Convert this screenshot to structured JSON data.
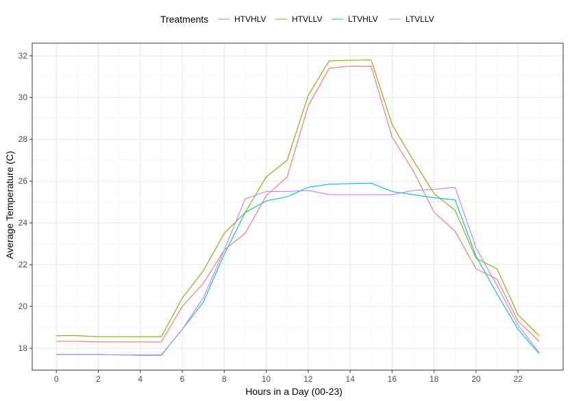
{
  "chart_data": {
    "type": "line",
    "xlabel": "Hours in a Day (00-23)",
    "ylabel": "Average Temperature (C)",
    "xlim": [
      -1.15,
      24.15
    ],
    "ylim": [
      16.95,
      32.6
    ],
    "x_ticks": [
      0,
      2,
      4,
      6,
      8,
      10,
      12,
      14,
      16,
      18,
      20,
      22
    ],
    "y_ticks": [
      18,
      20,
      22,
      24,
      26,
      28,
      30,
      32
    ],
    "grid": true,
    "legend": {
      "title": "Treatments",
      "position": "top"
    },
    "x": [
      0,
      1,
      2,
      3,
      4,
      5,
      6,
      7,
      8,
      9,
      10,
      11,
      12,
      13,
      14,
      15,
      16,
      17,
      18,
      19,
      20,
      21,
      22,
      23
    ],
    "series": [
      {
        "name": "HTVHLV",
        "color": "#F8766D",
        "values": [
          18.33,
          18.33,
          18.3,
          18.3,
          18.3,
          18.3,
          20.0,
          21.1,
          22.7,
          23.5,
          25.3,
          26.2,
          29.6,
          31.4,
          31.5,
          31.5,
          28.1,
          26.5,
          24.5,
          23.6,
          21.8,
          21.3,
          19.3,
          18.33
        ]
      },
      {
        "name": "HTVLLV",
        "color": "#7CAE00",
        "values": [
          18.6,
          18.6,
          18.55,
          18.55,
          18.55,
          18.55,
          20.4,
          21.7,
          23.5,
          24.5,
          26.2,
          27.0,
          30.1,
          31.75,
          31.78,
          31.8,
          28.7,
          27.0,
          25.4,
          24.6,
          22.3,
          21.8,
          19.6,
          18.6
        ]
      },
      {
        "name": "LTVHLV",
        "color": "#00BFC4",
        "values": [
          17.7,
          17.7,
          17.7,
          17.68,
          17.66,
          17.66,
          18.9,
          20.2,
          22.5,
          24.5,
          25.05,
          25.25,
          25.7,
          25.85,
          25.88,
          25.9,
          25.5,
          25.35,
          25.2,
          25.1,
          22.4,
          20.6,
          18.9,
          17.75
        ]
      },
      {
        "name": "LTVLLV",
        "color": "#C77CFF",
        "values": [
          17.7,
          17.7,
          17.7,
          17.68,
          17.68,
          17.68,
          18.9,
          20.4,
          22.7,
          25.15,
          25.5,
          25.5,
          25.55,
          25.35,
          25.35,
          25.35,
          25.35,
          25.55,
          25.6,
          25.7,
          22.8,
          21.0,
          19.1,
          17.8
        ]
      }
    ]
  }
}
